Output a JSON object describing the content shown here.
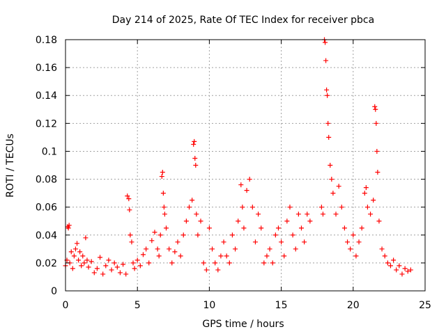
{
  "chart_data": {
    "type": "scatter",
    "title": "Day 214 of 2025, Rate Of TEC Index for receiver pbca",
    "xlabel": "GPS time / hours",
    "ylabel": "ROTI / TECUs",
    "xlim": [
      0,
      25
    ],
    "ylim": [
      0,
      0.18
    ],
    "x_ticks": [
      "0",
      "5",
      "10",
      "15",
      "20",
      "25"
    ],
    "y_ticks": [
      "0",
      "0.02",
      "0.04",
      "0.06",
      "0.08",
      "0.1",
      "0.12",
      "0.14",
      "0.16",
      "0.18"
    ],
    "grid": true,
    "marker": "+",
    "marker_color": "#ff0000",
    "series": [
      {
        "name": "",
        "points": [
          [
            0.0,
            0.018
          ],
          [
            0.1,
            0.022
          ],
          [
            0.15,
            0.046
          ],
          [
            0.2,
            0.045
          ],
          [
            0.25,
            0.047
          ],
          [
            0.3,
            0.02
          ],
          [
            0.4,
            0.028
          ],
          [
            0.5,
            0.016
          ],
          [
            0.6,
            0.025
          ],
          [
            0.7,
            0.03
          ],
          [
            0.8,
            0.034
          ],
          [
            0.9,
            0.022
          ],
          [
            1.0,
            0.028
          ],
          [
            1.1,
            0.018
          ],
          [
            1.2,
            0.025
          ],
          [
            1.3,
            0.02
          ],
          [
            1.4,
            0.038
          ],
          [
            1.5,
            0.022
          ],
          [
            1.6,
            0.017
          ],
          [
            1.8,
            0.021
          ],
          [
            2.0,
            0.013
          ],
          [
            2.2,
            0.016
          ],
          [
            2.4,
            0.024
          ],
          [
            2.6,
            0.012
          ],
          [
            2.8,
            0.018
          ],
          [
            3.0,
            0.022
          ],
          [
            3.2,
            0.015
          ],
          [
            3.4,
            0.02
          ],
          [
            3.6,
            0.017
          ],
          [
            3.8,
            0.013
          ],
          [
            4.0,
            0.019
          ],
          [
            4.2,
            0.012
          ],
          [
            4.3,
            0.068
          ],
          [
            4.4,
            0.066
          ],
          [
            4.45,
            0.058
          ],
          [
            4.5,
            0.04
          ],
          [
            4.6,
            0.035
          ],
          [
            4.7,
            0.02
          ],
          [
            4.8,
            0.016
          ],
          [
            5.0,
            0.022
          ],
          [
            5.2,
            0.018
          ],
          [
            5.4,
            0.026
          ],
          [
            5.6,
            0.03
          ],
          [
            5.8,
            0.02
          ],
          [
            6.0,
            0.036
          ],
          [
            6.2,
            0.042
          ],
          [
            6.4,
            0.03
          ],
          [
            6.5,
            0.025
          ],
          [
            6.6,
            0.04
          ],
          [
            6.7,
            0.082
          ],
          [
            6.75,
            0.085
          ],
          [
            6.8,
            0.07
          ],
          [
            6.85,
            0.06
          ],
          [
            6.9,
            0.055
          ],
          [
            7.0,
            0.045
          ],
          [
            7.2,
            0.03
          ],
          [
            7.4,
            0.02
          ],
          [
            7.6,
            0.028
          ],
          [
            7.8,
            0.035
          ],
          [
            8.0,
            0.025
          ],
          [
            8.2,
            0.04
          ],
          [
            8.4,
            0.05
          ],
          [
            8.6,
            0.06
          ],
          [
            8.8,
            0.065
          ],
          [
            8.9,
            0.105
          ],
          [
            8.95,
            0.107
          ],
          [
            9.0,
            0.095
          ],
          [
            9.05,
            0.09
          ],
          [
            9.1,
            0.055
          ],
          [
            9.2,
            0.04
          ],
          [
            9.4,
            0.05
          ],
          [
            9.6,
            0.02
          ],
          [
            9.8,
            0.015
          ],
          [
            10.0,
            0.045
          ],
          [
            10.2,
            0.03
          ],
          [
            10.4,
            0.02
          ],
          [
            10.6,
            0.015
          ],
          [
            10.8,
            0.025
          ],
          [
            11.0,
            0.035
          ],
          [
            11.2,
            0.025
          ],
          [
            11.4,
            0.02
          ],
          [
            11.6,
            0.04
          ],
          [
            11.8,
            0.03
          ],
          [
            12.0,
            0.05
          ],
          [
            12.2,
            0.076
          ],
          [
            12.3,
            0.06
          ],
          [
            12.4,
            0.045
          ],
          [
            12.6,
            0.072
          ],
          [
            12.8,
            0.08
          ],
          [
            13.0,
            0.06
          ],
          [
            13.2,
            0.035
          ],
          [
            13.4,
            0.055
          ],
          [
            13.6,
            0.045
          ],
          [
            13.8,
            0.02
          ],
          [
            14.0,
            0.025
          ],
          [
            14.2,
            0.03
          ],
          [
            14.4,
            0.02
          ],
          [
            14.6,
            0.04
          ],
          [
            14.8,
            0.045
          ],
          [
            15.0,
            0.035
          ],
          [
            15.2,
            0.025
          ],
          [
            15.4,
            0.05
          ],
          [
            15.6,
            0.06
          ],
          [
            15.8,
            0.04
          ],
          [
            16.0,
            0.03
          ],
          [
            16.2,
            0.055
          ],
          [
            16.4,
            0.045
          ],
          [
            16.6,
            0.035
          ],
          [
            16.8,
            0.055
          ],
          [
            17.0,
            0.05
          ],
          [
            17.8,
            0.06
          ],
          [
            17.9,
            0.055
          ],
          [
            18.0,
            0.18
          ],
          [
            18.05,
            0.178
          ],
          [
            18.1,
            0.165
          ],
          [
            18.15,
            0.144
          ],
          [
            18.2,
            0.14
          ],
          [
            18.25,
            0.12
          ],
          [
            18.3,
            0.11
          ],
          [
            18.4,
            0.09
          ],
          [
            18.5,
            0.08
          ],
          [
            18.6,
            0.07
          ],
          [
            18.8,
            0.055
          ],
          [
            19.0,
            0.075
          ],
          [
            19.2,
            0.06
          ],
          [
            19.4,
            0.045
          ],
          [
            19.6,
            0.035
          ],
          [
            19.8,
            0.03
          ],
          [
            20.0,
            0.04
          ],
          [
            20.2,
            0.025
          ],
          [
            20.4,
            0.035
          ],
          [
            20.6,
            0.045
          ],
          [
            20.8,
            0.07
          ],
          [
            20.9,
            0.074
          ],
          [
            21.0,
            0.06
          ],
          [
            21.2,
            0.055
          ],
          [
            21.4,
            0.065
          ],
          [
            21.5,
            0.132
          ],
          [
            21.55,
            0.13
          ],
          [
            21.6,
            0.12
          ],
          [
            21.65,
            0.1
          ],
          [
            21.7,
            0.085
          ],
          [
            21.8,
            0.05
          ],
          [
            22.0,
            0.03
          ],
          [
            22.2,
            0.025
          ],
          [
            22.4,
            0.02
          ],
          [
            22.6,
            0.018
          ],
          [
            22.8,
            0.022
          ],
          [
            23.0,
            0.015
          ],
          [
            23.2,
            0.018
          ],
          [
            23.4,
            0.012
          ],
          [
            23.6,
            0.016
          ],
          [
            23.8,
            0.014
          ],
          [
            24.0,
            0.015
          ]
        ]
      }
    ]
  }
}
